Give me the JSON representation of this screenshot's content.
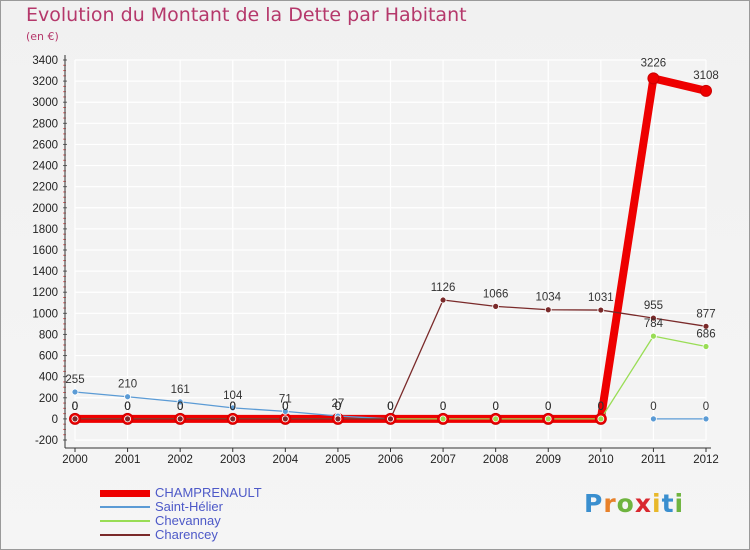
{
  "title": "Evolution du Montant de la Dette par Habitant",
  "subtitle": "(en €)",
  "logo_text": "Proxiti",
  "chart_data": {
    "type": "line",
    "title": "Evolution du Montant de la Dette par Habitant",
    "subtitle": "(en €)",
    "xlabel": "",
    "ylabel": "",
    "x": [
      "2000",
      "2001",
      "2002",
      "2003",
      "2004",
      "2005",
      "2006",
      "2007",
      "2008",
      "2009",
      "2010",
      "2011",
      "2012"
    ],
    "ylim": [
      -200,
      3400
    ],
    "yticks": [
      -200,
      0,
      200,
      400,
      600,
      800,
      1000,
      1200,
      1400,
      1600,
      1800,
      2000,
      2200,
      2400,
      2600,
      2800,
      3000,
      3200,
      3400
    ],
    "grid": true,
    "legend_position": "bottom-left",
    "series": [
      {
        "name": "CHAMPRENAULT",
        "color": "#ee0000",
        "values": [
          0,
          0,
          0,
          0,
          0,
          0,
          0,
          0,
          0,
          0,
          0,
          3226,
          3108
        ],
        "labels": [
          "0",
          "0",
          "0",
          "0",
          "0",
          "0",
          "0",
          "0",
          "0",
          "0",
          "0",
          "3226",
          "3108"
        ]
      },
      {
        "name": "Saint-Hélier",
        "color": "#5b9bd5",
        "values": [
          255,
          210,
          161,
          104,
          71,
          27,
          0,
          null,
          null,
          null,
          null,
          0,
          0
        ],
        "labels": [
          "255",
          "210",
          "161",
          "104",
          "71",
          "27",
          "",
          "",
          "",
          "",
          "",
          "0",
          "0"
        ]
      },
      {
        "name": "Chevannay",
        "color": "#99dd55",
        "values": [
          0,
          0,
          0,
          0,
          0,
          0,
          0,
          0,
          0,
          0,
          0,
          784,
          686
        ],
        "labels": [
          "0",
          "0",
          "0",
          "0",
          "0",
          "0",
          "0",
          "0",
          "0",
          "0",
          "0",
          "784",
          "686"
        ]
      },
      {
        "name": "Charencey",
        "color": "#7a2a2a",
        "values": [
          0,
          0,
          0,
          0,
          0,
          0,
          0,
          1126,
          1066,
          1034,
          1031,
          955,
          877
        ],
        "labels": [
          "0",
          "0",
          "0",
          "0",
          "0",
          "0",
          "0",
          "1126",
          "1066",
          "1034",
          "1031",
          "955",
          "877"
        ]
      }
    ]
  }
}
